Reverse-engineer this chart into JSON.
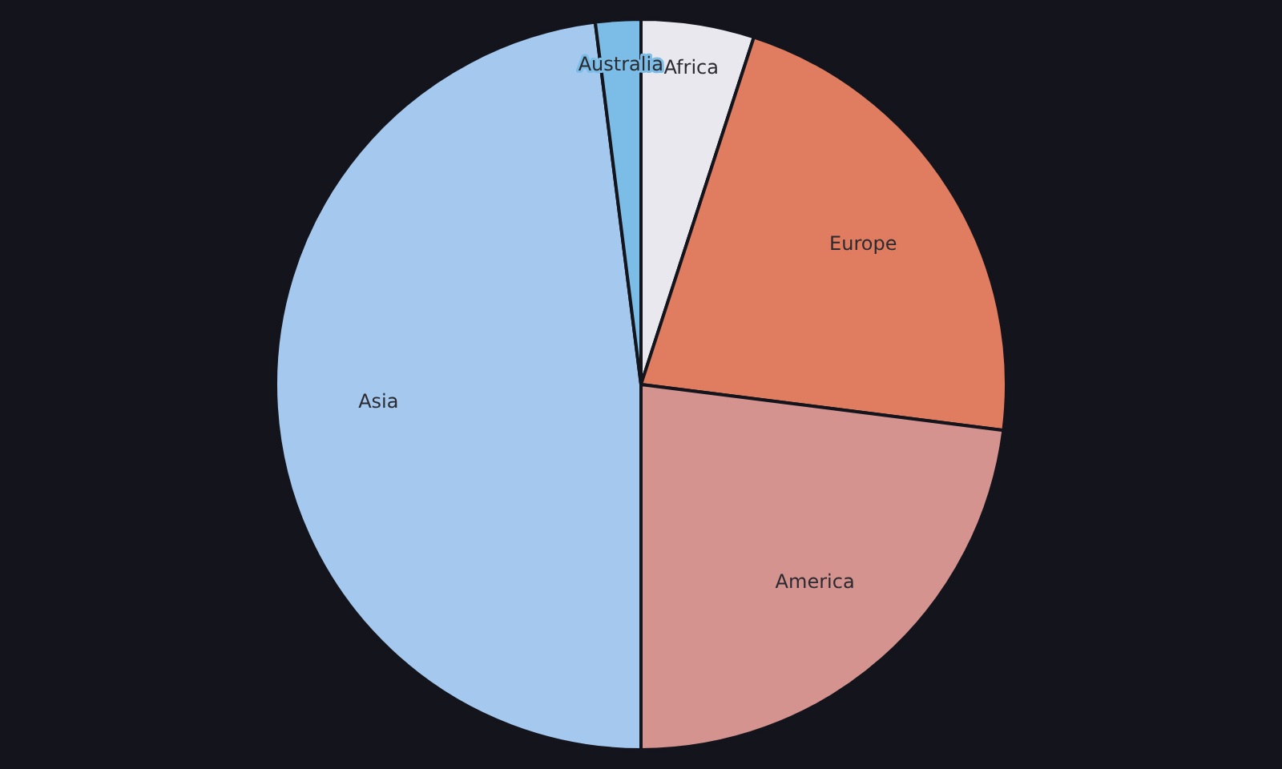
{
  "chart_data": {
    "type": "pie",
    "categories": [
      "Africa",
      "Europe",
      "America",
      "Asia",
      "Australia"
    ],
    "values": [
      5,
      22,
      23,
      48,
      2
    ],
    "colors": [
      "#e8e8ee",
      "#e07c5f",
      "#d4938f",
      "#a4c8ee",
      "#7bbde6"
    ]
  }
}
